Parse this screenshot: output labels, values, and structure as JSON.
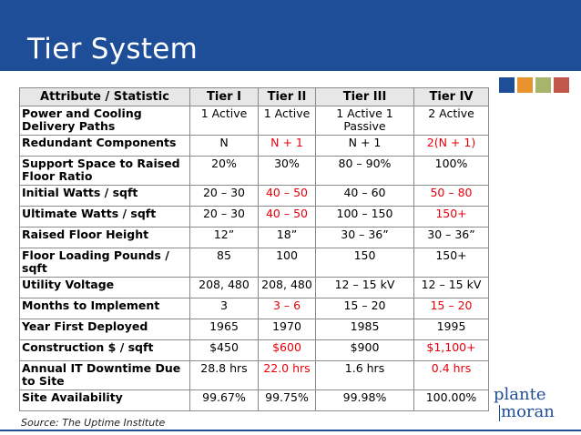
{
  "slide": {
    "title": "Tier System",
    "source": "Source: The Uptime Institute",
    "logo": {
      "text_top": "plante",
      "text_bottom": "moran"
    },
    "accent_squares": [
      "#1f4e99",
      "#e8932e",
      "#a7b56a",
      "#c0574a"
    ]
  },
  "table": {
    "headers": [
      "Attribute / Statistic",
      "Tier I",
      "Tier II",
      "Tier III",
      "Tier IV"
    ],
    "rows": [
      {
        "attr": "Power and Cooling Delivery Paths",
        "values": [
          "1 Active",
          "1 Active",
          "1 Active 1 Passive",
          "2 Active"
        ],
        "red": [
          false,
          false,
          false,
          false
        ]
      },
      {
        "attr": "Redundant Components",
        "values": [
          "N",
          "N + 1",
          "N + 1",
          "2(N + 1)"
        ],
        "red": [
          false,
          true,
          false,
          true
        ]
      },
      {
        "attr": "Support Space to Raised Floor Ratio",
        "values": [
          "20%",
          "30%",
          "80 – 90%",
          "100%"
        ],
        "red": [
          false,
          false,
          false,
          false
        ]
      },
      {
        "attr": "Initial Watts / sqft",
        "values": [
          "20 – 30",
          "40 – 50",
          "40 – 60",
          "50 – 80"
        ],
        "red": [
          false,
          true,
          false,
          true
        ]
      },
      {
        "attr": "Ultimate Watts / sqft",
        "values": [
          "20 – 30",
          "40 – 50",
          "100 – 150",
          "150+"
        ],
        "red": [
          false,
          true,
          false,
          true
        ]
      },
      {
        "attr": "Raised Floor Height",
        "values": [
          "12”",
          "18”",
          "30 – 36”",
          "30 – 36”"
        ],
        "red": [
          false,
          false,
          false,
          false
        ]
      },
      {
        "attr": "Floor Loading Pounds / sqft",
        "values": [
          "85",
          "100",
          "150",
          "150+"
        ],
        "red": [
          false,
          false,
          false,
          false
        ]
      },
      {
        "attr": "Utility Voltage",
        "values": [
          "208, 480",
          "208, 480",
          "12 – 15 kV",
          "12 – 15 kV"
        ],
        "red": [
          false,
          false,
          false,
          false
        ]
      },
      {
        "attr": "Months to Implement",
        "values": [
          "3",
          "3 – 6",
          "15 – 20",
          "15 – 20"
        ],
        "red": [
          false,
          true,
          false,
          true
        ]
      },
      {
        "attr": "Year First Deployed",
        "values": [
          "1965",
          "1970",
          "1985",
          "1995"
        ],
        "red": [
          false,
          false,
          false,
          false
        ]
      },
      {
        "attr": "Construction $ / sqft",
        "values": [
          "$450",
          "$600",
          "$900",
          "$1,100+"
        ],
        "red": [
          false,
          true,
          false,
          true
        ]
      },
      {
        "attr": "Annual IT Downtime Due to Site",
        "values": [
          "28.8 hrs",
          "22.0 hrs",
          "1.6 hrs",
          "0.4 hrs"
        ],
        "red": [
          false,
          true,
          false,
          true
        ]
      },
      {
        "attr": "Site Availability",
        "values": [
          "99.67%",
          "99.75%",
          "99.98%",
          "100.00%"
        ],
        "red": [
          false,
          false,
          false,
          false
        ]
      }
    ]
  }
}
